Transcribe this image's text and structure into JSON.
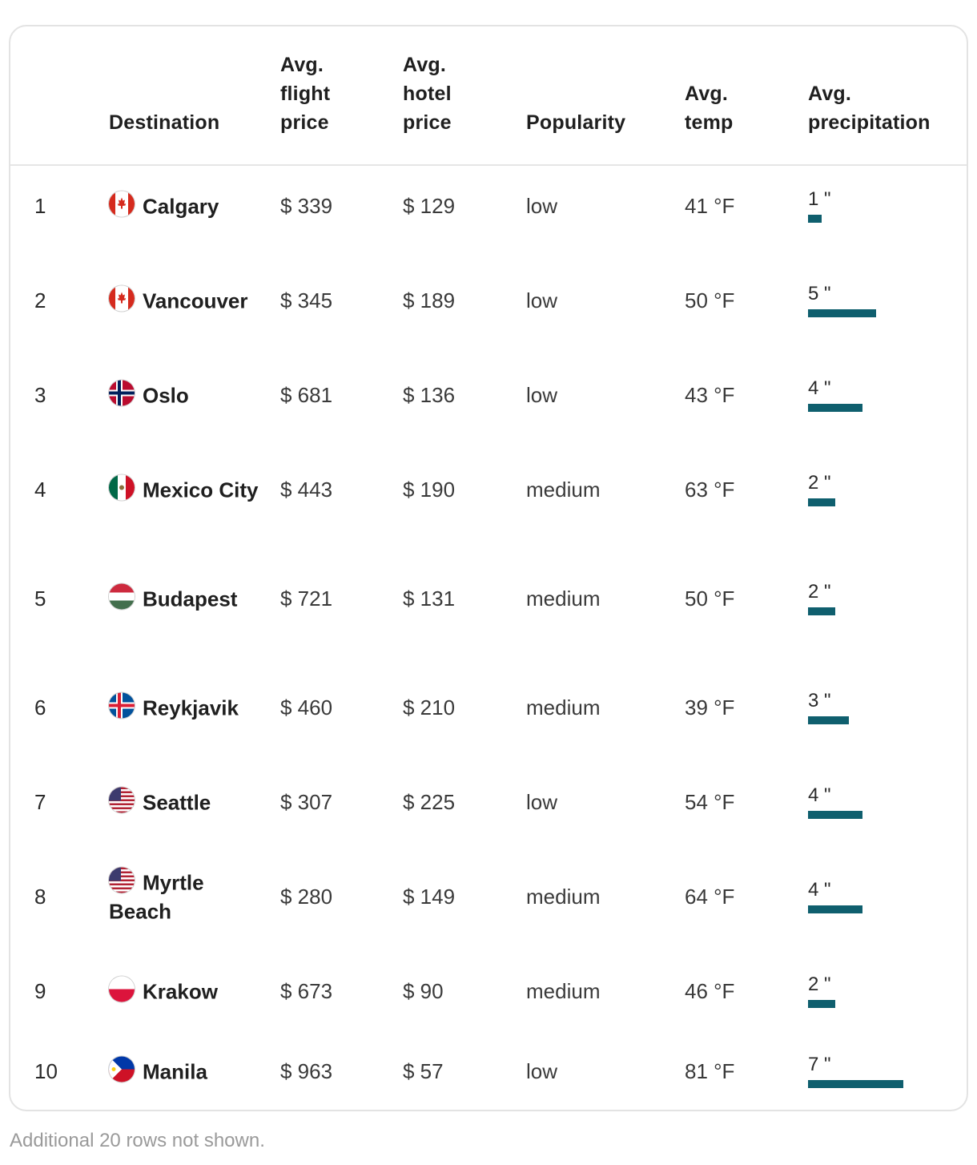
{
  "headers": {
    "destination": "Destination",
    "flight": [
      "Avg.",
      "flight",
      "price"
    ],
    "hotel": [
      "Avg.",
      "hotel",
      "price"
    ],
    "popularity": "Popularity",
    "temp": [
      "Avg.",
      "temp"
    ],
    "precip": [
      "Avg.",
      "precipitation"
    ]
  },
  "rows": [
    {
      "rank": "1",
      "dest": "Calgary",
      "flag": "canada-flag-icon",
      "flight": "$ 339",
      "hotel": "$ 129",
      "pop": "low",
      "temp": "41 °F",
      "precip": "1 \"",
      "precip_in": 1
    },
    {
      "rank": "2",
      "dest": "Vancouver",
      "flag": "canada-flag-icon",
      "flight": "$ 345",
      "hotel": "$ 189",
      "pop": "low",
      "temp": "50 °F",
      "precip": "5 \"",
      "precip_in": 5
    },
    {
      "rank": "3",
      "dest": "Oslo",
      "flag": "norway-flag-icon",
      "flight": "$ 681",
      "hotel": "$ 136",
      "pop": "low",
      "temp": "43 °F",
      "precip": "4 \"",
      "precip_in": 4
    },
    {
      "rank": "4",
      "dest": "Mexico City",
      "flag": "mexico-flag-icon",
      "flight": "$ 443",
      "hotel": "$ 190",
      "pop": "medium",
      "temp": "63 °F",
      "precip": "2 \"",
      "precip_in": 2
    },
    {
      "rank": "5",
      "dest": "Budapest",
      "flag": "hungary-flag-icon",
      "flight": "$ 721",
      "hotel": "$ 131",
      "pop": "medium",
      "temp": "50 °F",
      "precip": "2 \"",
      "precip_in": 2
    },
    {
      "rank": "6",
      "dest": "Reykjavik",
      "flag": "iceland-flag-icon",
      "flight": "$ 460",
      "hotel": "$ 210",
      "pop": "medium",
      "temp": "39 °F",
      "precip": "3 \"",
      "precip_in": 3
    },
    {
      "rank": "7",
      "dest": "Seattle",
      "flag": "usa-flag-icon",
      "flight": "$ 307",
      "hotel": "$ 225",
      "pop": "low",
      "temp": "54 °F",
      "precip": "4 \"",
      "precip_in": 4
    },
    {
      "rank": "8",
      "dest": "Myrtle Beach",
      "flag": "usa-flag-icon",
      "flight": "$ 280",
      "hotel": "$ 149",
      "pop": "medium",
      "temp": "64 °F",
      "precip": "4 \"",
      "precip_in": 4
    },
    {
      "rank": "9",
      "dest": "Krakow",
      "flag": "poland-flag-icon",
      "flight": "$ 673",
      "hotel": "$ 90",
      "pop": "medium",
      "temp": "46 °F",
      "precip": "2 \"",
      "precip_in": 2
    },
    {
      "rank": "10",
      "dest": "Manila",
      "flag": "philippines-flag-icon",
      "flight": "$ 963",
      "hotel": "$ 57",
      "pop": "low",
      "temp": "81 °F",
      "precip": "7 \"",
      "precip_in": 7
    }
  ],
  "footer": "Additional 20 rows not shown.",
  "colors": {
    "precip_bar": "#0f5f6e",
    "border": "#e3e3e3",
    "footer_text": "#9a9a9a"
  }
}
